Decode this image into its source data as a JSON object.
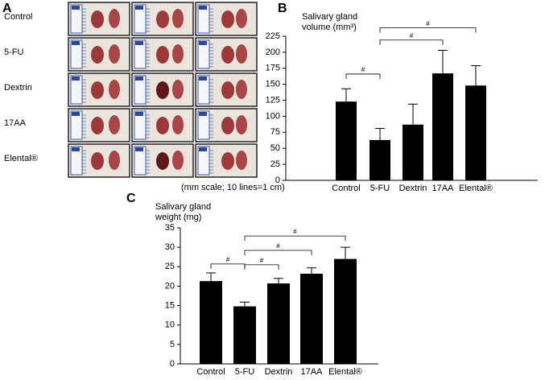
{
  "panel_a": {
    "panel_label": "A",
    "row_labels": [
      "Control",
      "5-FU",
      "Dextrin",
      "17AA",
      "Elental®"
    ],
    "caption": "(mm scale; 10 lines=1 cm)"
  },
  "chart_data": [
    {
      "type": "bar",
      "panel_label": "B",
      "ylabel": [
        "Salivary gland",
        "volume (mm³)"
      ],
      "categories": [
        "Control",
        "5-FU",
        "Dextrin",
        "17AA",
        "Elental®"
      ],
      "values": [
        123,
        63,
        87,
        167,
        148
      ],
      "errors": [
        20,
        18,
        32,
        36,
        31
      ],
      "color": "#000000",
      "ylim": [
        0,
        225
      ],
      "yticks": [
        0,
        25,
        50,
        75,
        100,
        125,
        150,
        175,
        200,
        225
      ],
      "brackets": [
        {
          "from": 0,
          "to": 1,
          "y": 166,
          "label": "#"
        },
        {
          "from": 1,
          "to": 3,
          "y": 219,
          "label": "#"
        },
        {
          "from": 1,
          "to": 4,
          "y": 238,
          "label": "#"
        }
      ]
    },
    {
      "type": "bar",
      "panel_label": "C",
      "ylabel": [
        "Salivary gland",
        "weight (mg)"
      ],
      "categories": [
        "Control",
        "5-FU",
        "Dextrin",
        "17AA",
        "Elental®"
      ],
      "values": [
        21.3,
        14.8,
        20.7,
        23.2,
        27
      ],
      "errors": [
        2.1,
        1.1,
        1.3,
        1.5,
        3
      ],
      "color": "#000000",
      "ylim": [
        0,
        35
      ],
      "yticks": [
        0,
        5,
        10,
        15,
        20,
        25,
        30,
        35
      ],
      "brackets": [
        {
          "from": 0,
          "to": 1,
          "y": 25.7,
          "label": "#"
        },
        {
          "from": 1,
          "to": 2,
          "y": 25.5,
          "label": "#"
        },
        {
          "from": 1,
          "to": 3,
          "y": 29.2,
          "label": "#"
        },
        {
          "from": 1,
          "to": 4,
          "y": 32.9,
          "label": "#"
        }
      ]
    }
  ]
}
